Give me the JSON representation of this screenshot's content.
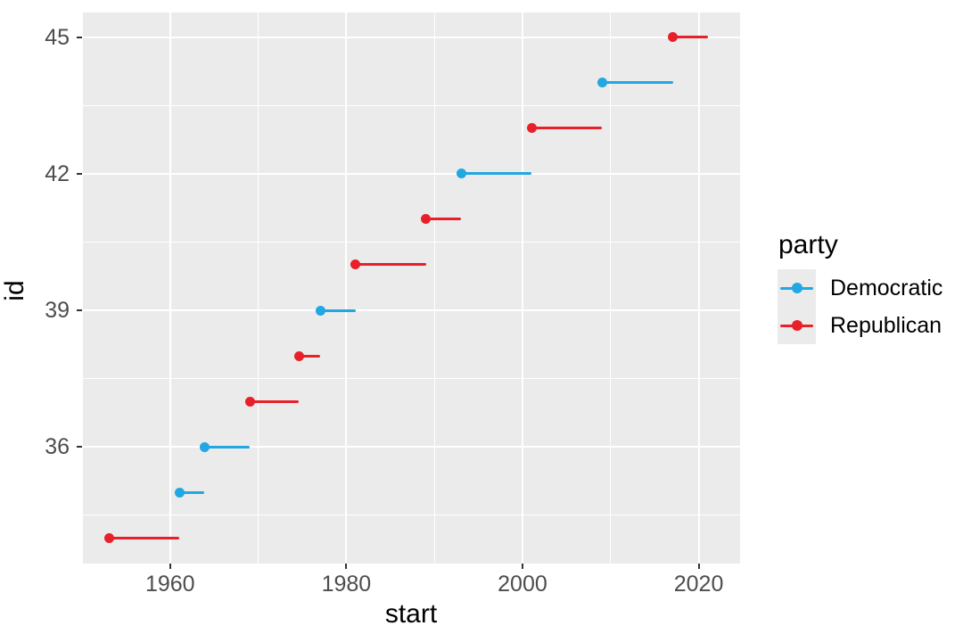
{
  "figure": {
    "background": "#FFFFFF",
    "panel_background": "#EBEBEB",
    "grid_color": "#FFFFFF",
    "tick_mark_color": "#333333",
    "tick_label_color": "#4D4D4D",
    "axis_title_color": "#000000"
  },
  "legend": {
    "title": "party",
    "position": "right",
    "items": [
      {
        "label": "Democratic",
        "color": "#21A7E2"
      },
      {
        "label": "Republican",
        "color": "#E8202A"
      }
    ]
  },
  "chart_data": {
    "type": "segment",
    "title": "",
    "xlabel": "start",
    "ylabel": "id",
    "x_axis": {
      "title": "start",
      "major_ticks": [
        1960,
        1980,
        2000,
        2020
      ],
      "minor_gridlines": [
        1950,
        1970,
        1990,
        2010
      ],
      "domain": [
        1950.0,
        2024.7
      ],
      "grid": true
    },
    "y_axis": {
      "title": "id",
      "major_ticks": [
        36,
        39,
        42,
        45
      ],
      "minor_gridlines": [
        34.5,
        37.5,
        40.5,
        43.5
      ],
      "domain": [
        33.44,
        45.54
      ],
      "grid": true
    },
    "series_colors": {
      "Democratic": "#21A7E2",
      "Republican": "#E8202A"
    },
    "points": [
      {
        "id": 34,
        "party": "Republican",
        "start": 1953.06,
        "end": 1961.06
      },
      {
        "id": 35,
        "party": "Democratic",
        "start": 1961.06,
        "end": 1963.9
      },
      {
        "id": 36,
        "party": "Democratic",
        "start": 1963.9,
        "end": 1969.06
      },
      {
        "id": 37,
        "party": "Republican",
        "start": 1969.06,
        "end": 1974.6
      },
      {
        "id": 38,
        "party": "Republican",
        "start": 1974.6,
        "end": 1977.06
      },
      {
        "id": 39,
        "party": "Democratic",
        "start": 1977.06,
        "end": 1981.06
      },
      {
        "id": 40,
        "party": "Republican",
        "start": 1981.06,
        "end": 1989.06
      },
      {
        "id": 41,
        "party": "Republican",
        "start": 1989.06,
        "end": 1993.06
      },
      {
        "id": 42,
        "party": "Democratic",
        "start": 1993.06,
        "end": 2001.06
      },
      {
        "id": 43,
        "party": "Republican",
        "start": 2001.06,
        "end": 2009.06
      },
      {
        "id": 44,
        "party": "Democratic",
        "start": 2009.06,
        "end": 2017.06
      },
      {
        "id": 45,
        "party": "Republican",
        "start": 2017.06,
        "end": 2021.06
      }
    ]
  }
}
